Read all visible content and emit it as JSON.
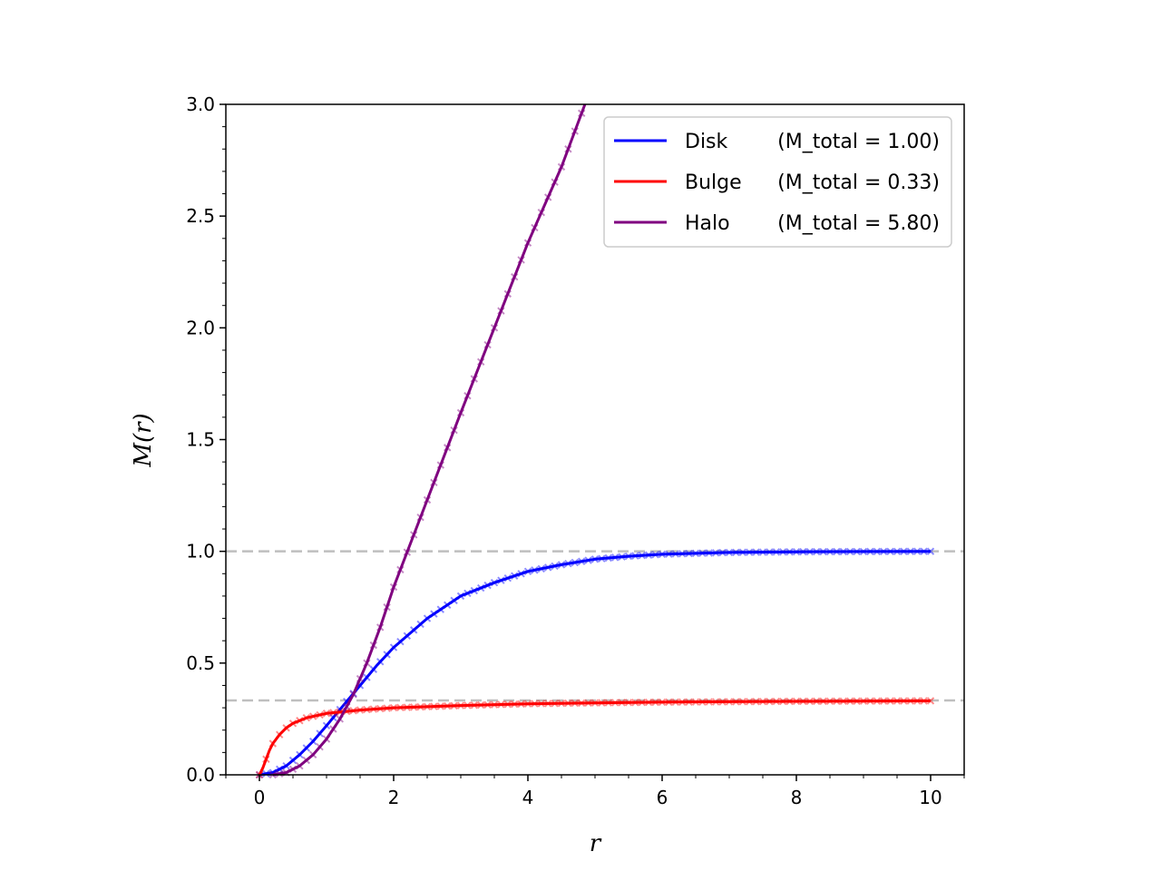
{
  "chart_data": {
    "type": "line",
    "title": "",
    "xlabel": "r",
    "ylabel": "M(r)",
    "xlim": [
      -0.5,
      10.5
    ],
    "ylim": [
      0,
      3.0
    ],
    "x_ticks": [
      "0",
      "2",
      "4",
      "6",
      "8",
      "10"
    ],
    "y_ticks": [
      "0.0",
      "0.5",
      "1.0",
      "1.5",
      "2.0",
      "2.5",
      "3.0"
    ],
    "grid": false,
    "legend_position": "top-right",
    "reference_lines": [
      {
        "y": 1.0,
        "color": "#bfbfbf",
        "style": "dashed"
      },
      {
        "y": 0.333,
        "color": "#bfbfbf",
        "style": "dashed"
      }
    ],
    "series": [
      {
        "name": "Disk",
        "legend_label": "Disk",
        "legend_mass": "(M_total = 1.00)",
        "color": "#0000ff",
        "x": [
          0,
          0.2,
          0.4,
          0.6,
          0.8,
          1.0,
          1.25,
          1.5,
          1.75,
          2.0,
          2.5,
          3.0,
          3.5,
          4.0,
          4.5,
          5.0,
          5.5,
          6.0,
          7.0,
          8.0,
          9.0,
          10.0
        ],
        "values": [
          0,
          0.01,
          0.04,
          0.09,
          0.15,
          0.22,
          0.31,
          0.4,
          0.49,
          0.57,
          0.7,
          0.8,
          0.86,
          0.91,
          0.94,
          0.965,
          0.978,
          0.987,
          0.995,
          0.998,
          0.999,
          1.0
        ]
      },
      {
        "name": "Bulge",
        "legend_label": "Bulge",
        "legend_mass": "(M_total = 0.33)",
        "color": "#ff0000",
        "x": [
          0,
          0.05,
          0.1,
          0.15,
          0.2,
          0.3,
          0.4,
          0.5,
          0.7,
          1.0,
          1.5,
          2.0,
          3.0,
          4.0,
          5.0,
          6.0,
          7.0,
          8.0,
          9.0,
          10.0
        ],
        "values": [
          0,
          0.03,
          0.07,
          0.11,
          0.14,
          0.18,
          0.21,
          0.23,
          0.255,
          0.275,
          0.29,
          0.3,
          0.31,
          0.318,
          0.322,
          0.325,
          0.327,
          0.329,
          0.33,
          0.331
        ]
      },
      {
        "name": "Halo",
        "legend_label": "Halo",
        "legend_mass": "(M_total = 5.80)",
        "color": "#800080",
        "x": [
          0.2,
          0.4,
          0.6,
          0.8,
          1.0,
          1.2,
          1.4,
          1.6,
          1.8,
          2.0,
          2.5,
          3.0,
          3.5,
          4.0,
          4.5,
          4.85
        ],
        "values": [
          0.0,
          0.01,
          0.04,
          0.09,
          0.16,
          0.25,
          0.36,
          0.5,
          0.66,
          0.84,
          1.23,
          1.62,
          2.0,
          2.38,
          2.72,
          3.0
        ]
      }
    ]
  }
}
